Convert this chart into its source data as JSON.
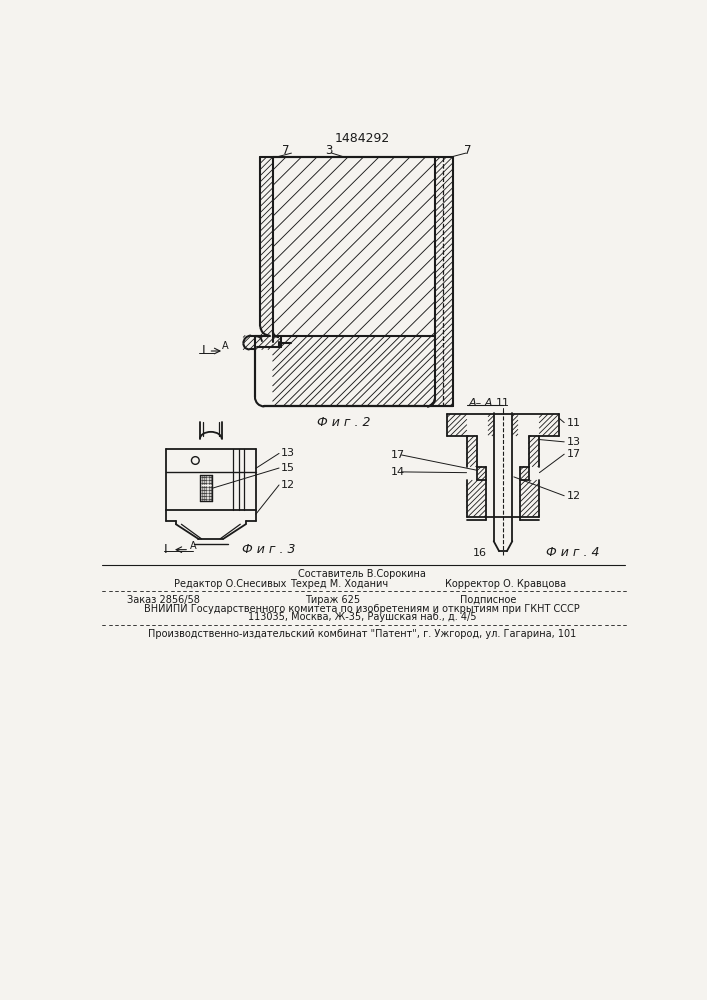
{
  "title": "1484292",
  "bg_color": "#f5f3ef",
  "line_color": "#1a1a1a",
  "footer_lines": [
    "Составитель В.Сорокина",
    "Редактор О.Снесивых",
    "Техред М. Ходанич",
    "Корректор О. Кравцова",
    "Заказ 2856/58",
    "Тираж 625",
    "Подписное",
    "ВНИИПИ Государственного комитета по изобретениям и открытиям при ГКНТ СССР",
    "113035, Москва, Ж-35, Раушская наб., д. 4/5",
    "Производственно-издательский комбинат \"Патент\", г. Ужгород, ул. Гагарина, 101"
  ]
}
